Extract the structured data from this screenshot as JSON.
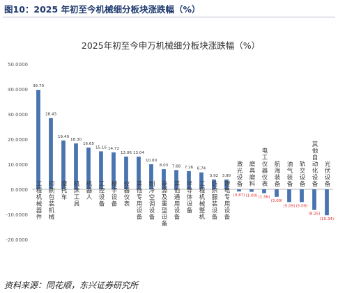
{
  "header": {
    "figure_title": "图10：2025 年初至今机械细分板块涨跌幅（%）"
  },
  "footer": {
    "source": "资料来源：同花顺，东兴证券研究所"
  },
  "colors": {
    "bar": "#4a74b0",
    "negative_label": "#e0322e",
    "rule": "#b4bccb",
    "title": "#1f3a6e"
  },
  "chart_data": {
    "type": "bar",
    "title": "2025年初至今申万机械细分板块涨跌幅（%）",
    "categories": [
      "工程机械器件",
      "印刷包装机械",
      "摩托车",
      "机床工具",
      "机器人",
      "工控设备",
      "楼宇设备",
      "仪器仪表",
      "其他专用设备",
      "制冷空调设备",
      "能源及重型设备",
      "其他通用设备",
      "半导体设备",
      "工程机械整机",
      "纺织服装设备",
      "锂电专用设备",
      "激光设备",
      "磨具磨料",
      "电工仪器仪表",
      "航海装备",
      "油气装备",
      "轨交设备",
      "其他自动化设备",
      "光伏设备"
    ],
    "values": [
      39.7,
      28.43,
      19.49,
      18.3,
      16.65,
      15.16,
      14.72,
      13.06,
      13.04,
      10.0,
      8.03,
      7.68,
      7.26,
      6.74,
      3.92,
      3.9,
      -0.87,
      -1.0,
      -1.56,
      -3.0,
      -5.09,
      -5.09,
      -8.25,
      -10.34
    ],
    "value_labels": [
      "39.70",
      "28.43",
      "19.49",
      "18.30",
      "16.65",
      "15.16",
      "14.72",
      "13.06",
      "13.04",
      "10.00",
      "8.03",
      "7.68",
      "7.26",
      "6.74",
      "3.92",
      "3.90",
      "(0.87)",
      "(1.00)",
      "(1.56)",
      "(3.00)",
      "(5.09)",
      "(5.09)",
      "(8.25)",
      "(10.34)"
    ],
    "ylim": [
      -20,
      50
    ],
    "yticks": [
      50,
      40,
      30,
      20,
      10,
      0,
      -10,
      -20
    ],
    "ytick_labels": [
      "50.0000",
      "40.0000",
      "30.0000",
      "20.0000",
      "10.0000",
      "0.0000",
      "-10.0000",
      "-20.0000"
    ],
    "grid": false,
    "legend": "none"
  }
}
